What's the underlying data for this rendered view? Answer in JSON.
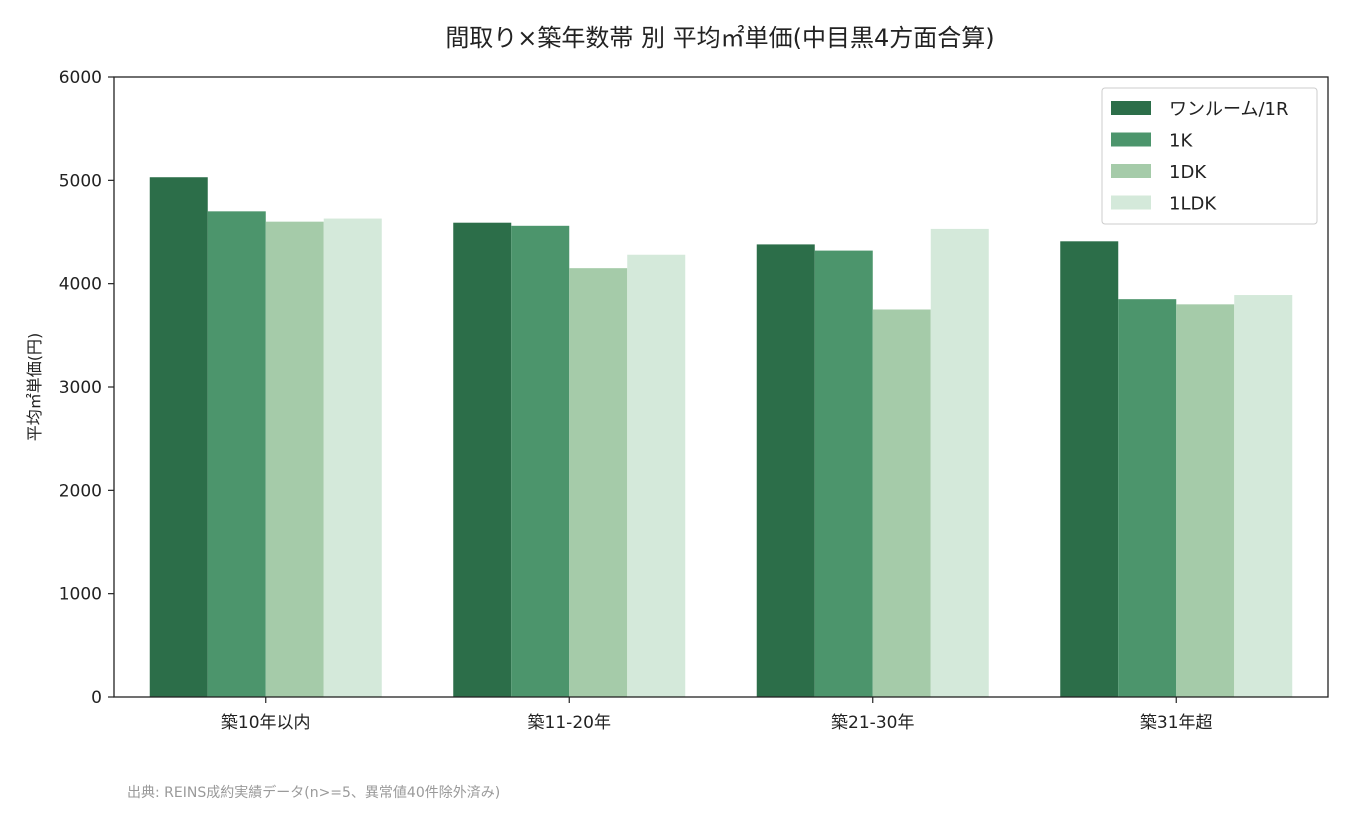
{
  "chart_data": {
    "type": "bar",
    "title": "間取り×築年数帯 別 平均㎡単価(中目黒4方面合算)",
    "xlabel": "",
    "ylabel": "平均㎡単価(円)",
    "ylim": [
      0,
      6000
    ],
    "yticks": [
      0,
      1000,
      2000,
      3000,
      4000,
      5000,
      6000
    ],
    "categories": [
      "築10年以内",
      "築11-20年",
      "築21-30年",
      "築31年超"
    ],
    "series": [
      {
        "name": "ワンルーム/1R",
        "color": "#2c6e49",
        "values": [
          5030,
          4590,
          4380,
          4410
        ]
      },
      {
        "name": "1K",
        "color": "#4c956c",
        "values": [
          4700,
          4560,
          4320,
          3850
        ]
      },
      {
        "name": "1DK",
        "color": "#a5cba9",
        "values": [
          4600,
          4150,
          3750,
          3800
        ]
      },
      {
        "name": "1LDK",
        "color": "#d4e9da",
        "values": [
          4630,
          4280,
          4530,
          3890
        ]
      }
    ],
    "grid": false,
    "legend_position": "top-right"
  },
  "source_note": "出典: REINS成約実績データ(n>=5、異常値40件除外済み)"
}
